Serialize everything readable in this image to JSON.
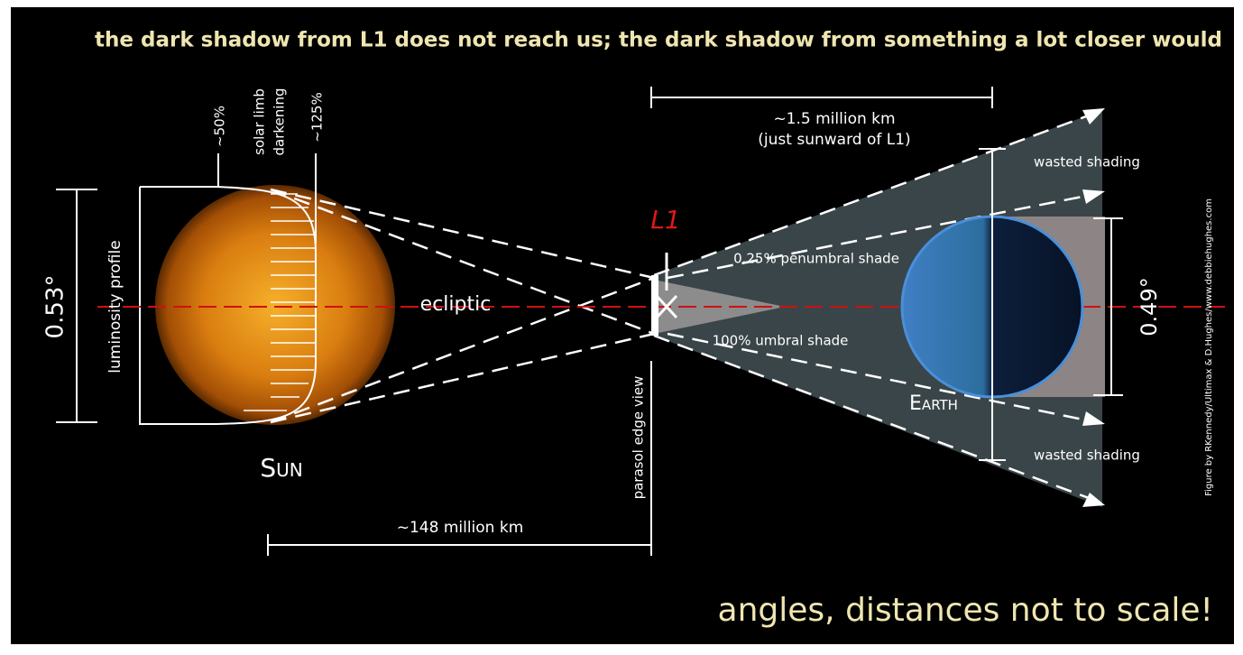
{
  "header": {
    "title": "the dark shadow from L1 does not reach us; the dark shadow from something a lot closer would"
  },
  "sun": {
    "name": "Sun",
    "angle": "0.53°",
    "profile": "luminosity profile",
    "edge_pct": "~50%",
    "limb_line1": "solar limb",
    "limb_line2": "darkening",
    "center_pct": "~125%"
  },
  "ecliptic": "ecliptic",
  "l1": {
    "label": "L1",
    "distance_line1": "~1.5 million km",
    "distance_line2": "(just sunward of L1)",
    "parasol": "parasol edge view"
  },
  "sun_distance": "~148 million km",
  "shading": {
    "wasted_top": "wasted shading",
    "wasted_bottom": "wasted shading",
    "penumbral": "0.25% penumbral shade",
    "umbral": "100% umbral shade"
  },
  "earth": {
    "name": "Earth",
    "angle": "0.49°"
  },
  "credit": "Figure by RKennedy/Ultimax & D.Hughes/www.debbiehughes.com",
  "footer": {
    "note": "angles, distances not to scale!"
  }
}
